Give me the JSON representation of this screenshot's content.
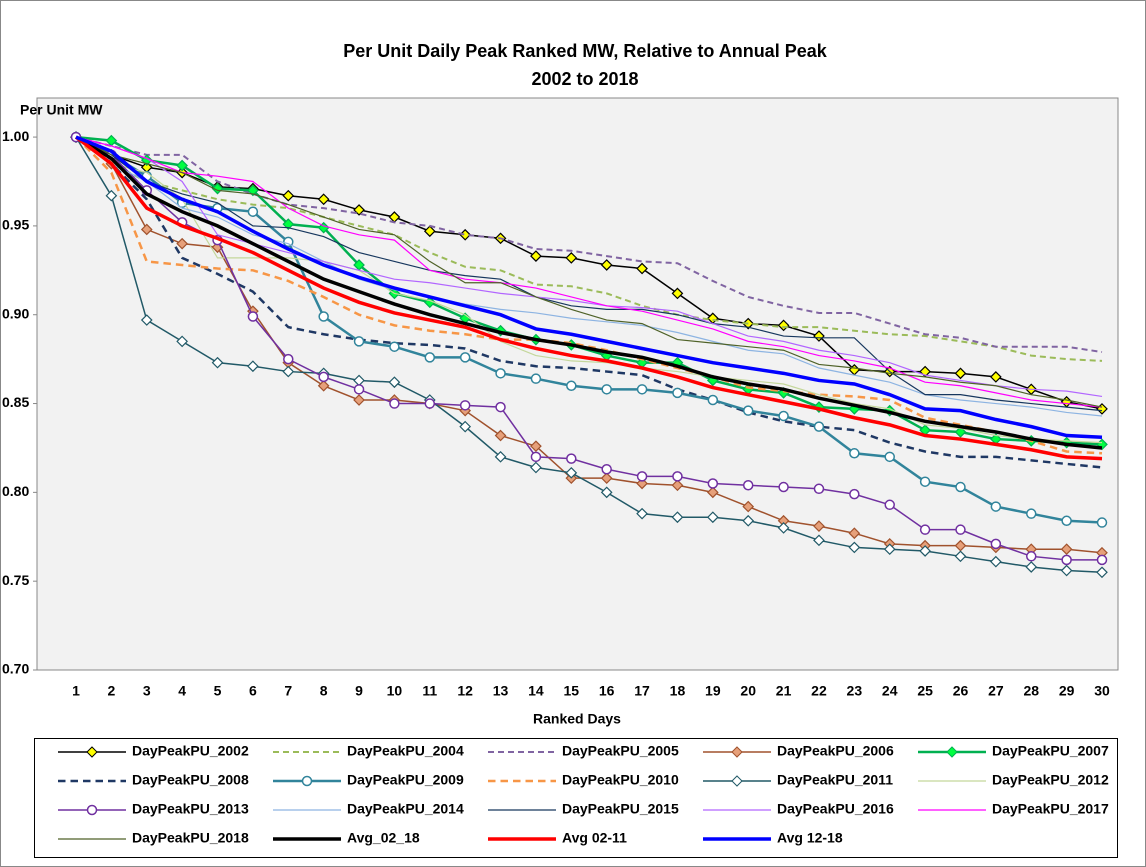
{
  "chart_data": {
    "type": "line",
    "title": "Per Unit Daily Peak Ranked MW, Relative to Annual Peak",
    "subtitle": "2002 to 2018",
    "y_label": "Per Unit MW",
    "x_label": "Ranked Days",
    "categories": [
      "1",
      "2",
      "3",
      "4",
      "5",
      "6",
      "7",
      "8",
      "9",
      "10",
      "11",
      "12",
      "13",
      "14",
      "15",
      "16",
      "17",
      "18",
      "19",
      "20",
      "21",
      "22",
      "23",
      "24",
      "25",
      "26",
      "27",
      "28",
      "29",
      "30"
    ],
    "ylim": [
      0.7,
      1.022
    ],
    "yticks": [
      {
        "value": 0.7,
        "label": "0.70"
      },
      0.75,
      {
        "value": 0.8,
        "label": "0.80"
      },
      0.85,
      {
        "value": 0.9,
        "label": "0.90"
      },
      0.95,
      {
        "value": 1,
        "label": "1.00"
      }
    ],
    "grid": false,
    "legend": "bottom",
    "series": [
      {
        "name": "DayPeakPU_2002",
        "color": "#000000",
        "width": 1.5,
        "marker": "diamond",
        "marker_fill": "#ffff00",
        "values": [
          1.0,
          0.99,
          0.983,
          0.98,
          0.972,
          0.971,
          0.967,
          0.965,
          0.959,
          0.955,
          0.947,
          0.945,
          0.943,
          0.933,
          0.932,
          0.928,
          0.926,
          0.912,
          0.898,
          0.895,
          0.894,
          0.888,
          0.869,
          0.868,
          0.868,
          0.867,
          0.865,
          0.858,
          0.851,
          0.847
        ]
      },
      {
        "name": "DayPeakPU_2004",
        "color": "#9bbb59",
        "width": 2,
        "dash": true,
        "values": [
          1.0,
          0.985,
          0.975,
          0.97,
          0.965,
          0.962,
          0.96,
          0.955,
          0.95,
          0.945,
          0.935,
          0.927,
          0.925,
          0.917,
          0.916,
          0.912,
          0.905,
          0.9,
          0.897,
          0.895,
          0.893,
          0.893,
          0.891,
          0.889,
          0.888,
          0.885,
          0.882,
          0.877,
          0.875,
          0.874
        ]
      },
      {
        "name": "DayPeakPU_2005",
        "color": "#8064a2",
        "width": 2,
        "dash": true,
        "values": [
          1.0,
          0.995,
          0.99,
          0.99,
          0.975,
          0.968,
          0.962,
          0.96,
          0.957,
          0.952,
          0.95,
          0.945,
          0.943,
          0.937,
          0.936,
          0.933,
          0.93,
          0.929,
          0.919,
          0.91,
          0.905,
          0.901,
          0.901,
          0.895,
          0.889,
          0.887,
          0.882,
          0.882,
          0.882,
          0.879
        ]
      },
      {
        "name": "DayPeakPU_2006",
        "color": "#a0522d",
        "width": 1.5,
        "marker": "diamond",
        "marker_fill": "#e6a07a",
        "values": [
          1.0,
          0.985,
          0.948,
          0.94,
          0.938,
          0.902,
          0.873,
          0.86,
          0.852,
          0.852,
          0.85,
          0.846,
          0.832,
          0.826,
          0.808,
          0.808,
          0.805,
          0.804,
          0.8,
          0.792,
          0.784,
          0.781,
          0.777,
          0.771,
          0.77,
          0.77,
          0.769,
          0.768,
          0.768,
          0.766
        ]
      },
      {
        "name": "DayPeakPU_2007",
        "color": "#00b050",
        "width": 2.5,
        "marker": "diamond",
        "marker_fill": "#00ff40",
        "values": [
          1.0,
          0.998,
          0.987,
          0.984,
          0.971,
          0.97,
          0.951,
          0.949,
          0.928,
          0.912,
          0.907,
          0.898,
          0.891,
          0.886,
          0.883,
          0.877,
          0.873,
          0.873,
          0.863,
          0.858,
          0.856,
          0.848,
          0.847,
          0.846,
          0.835,
          0.834,
          0.83,
          0.829,
          0.828,
          0.827
        ]
      },
      {
        "name": "DayPeakPU_2008",
        "color": "#1f3864",
        "width": 2.5,
        "dash": true,
        "values": [
          1.0,
          0.985,
          0.965,
          0.932,
          0.923,
          0.913,
          0.893,
          0.889,
          0.886,
          0.884,
          0.883,
          0.881,
          0.874,
          0.871,
          0.87,
          0.868,
          0.866,
          0.858,
          0.852,
          0.845,
          0.84,
          0.837,
          0.835,
          0.828,
          0.823,
          0.82,
          0.82,
          0.818,
          0.816,
          0.814
        ]
      },
      {
        "name": "DayPeakPU_2009",
        "color": "#31849b",
        "width": 2.5,
        "marker": "circle",
        "marker_fill": "#ffffff",
        "values": [
          1.0,
          0.99,
          0.978,
          0.963,
          0.96,
          0.958,
          0.941,
          0.899,
          0.885,
          0.882,
          0.876,
          0.876,
          0.867,
          0.864,
          0.86,
          0.858,
          0.858,
          0.856,
          0.852,
          0.846,
          0.843,
          0.837,
          0.822,
          0.82,
          0.806,
          0.803,
          0.792,
          0.788,
          0.784,
          0.783
        ]
      },
      {
        "name": "DayPeakPU_2010",
        "color": "#f79646",
        "width": 2.5,
        "dash": true,
        "values": [
          1.0,
          0.98,
          0.93,
          0.928,
          0.926,
          0.925,
          0.919,
          0.91,
          0.9,
          0.894,
          0.891,
          0.889,
          0.886,
          0.886,
          0.884,
          0.88,
          0.875,
          0.87,
          0.865,
          0.859,
          0.857,
          0.855,
          0.854,
          0.852,
          0.842,
          0.838,
          0.834,
          0.829,
          0.823,
          0.822
        ]
      },
      {
        "name": "DayPeakPU_2011",
        "color": "#215967",
        "width": 1.5,
        "marker": "diamond",
        "marker_fill": "#ffffff",
        "values": [
          1.0,
          0.967,
          0.897,
          0.885,
          0.873,
          0.871,
          0.868,
          0.867,
          0.863,
          0.862,
          0.852,
          0.837,
          0.82,
          0.814,
          0.811,
          0.8,
          0.788,
          0.786,
          0.786,
          0.784,
          0.78,
          0.773,
          0.769,
          0.768,
          0.767,
          0.764,
          0.761,
          0.758,
          0.756,
          0.755
        ]
      },
      {
        "name": "DayPeakPU_2012",
        "color": "#c4d79b",
        "width": 1.2,
        "values": [
          1.0,
          0.985,
          0.98,
          0.965,
          0.932,
          0.932,
          0.932,
          0.93,
          0.925,
          0.912,
          0.908,
          0.9,
          0.885,
          0.877,
          0.874,
          0.873,
          0.87,
          0.868,
          0.865,
          0.863,
          0.861,
          0.855,
          0.85,
          0.847,
          0.838,
          0.836,
          0.832,
          0.83,
          0.829,
          0.828
        ]
      },
      {
        "name": "DayPeakPU_2013",
        "color": "#7030a0",
        "width": 1.5,
        "marker": "circle",
        "marker_fill": "#ffffff",
        "values": [
          1.0,
          0.99,
          0.97,
          0.952,
          0.942,
          0.899,
          0.875,
          0.865,
          0.858,
          0.85,
          0.85,
          0.849,
          0.848,
          0.82,
          0.819,
          0.813,
          0.809,
          0.809,
          0.805,
          0.804,
          0.803,
          0.802,
          0.799,
          0.793,
          0.779,
          0.779,
          0.771,
          0.764,
          0.762,
          0.762
        ]
      },
      {
        "name": "DayPeakPU_2014",
        "color": "#8db4e2",
        "width": 1.2,
        "values": [
          1.0,
          0.985,
          0.975,
          0.96,
          0.955,
          0.945,
          0.94,
          0.93,
          0.92,
          0.914,
          0.91,
          0.906,
          0.903,
          0.901,
          0.898,
          0.896,
          0.894,
          0.89,
          0.885,
          0.88,
          0.878,
          0.87,
          0.866,
          0.862,
          0.855,
          0.852,
          0.85,
          0.848,
          0.845,
          0.843
        ]
      },
      {
        "name": "DayPeakPU_2015",
        "color": "#17375e",
        "width": 1.2,
        "values": [
          1.0,
          0.99,
          0.975,
          0.968,
          0.963,
          0.95,
          0.949,
          0.944,
          0.935,
          0.93,
          0.925,
          0.922,
          0.92,
          0.91,
          0.905,
          0.903,
          0.903,
          0.9,
          0.895,
          0.893,
          0.888,
          0.887,
          0.887,
          0.868,
          0.855,
          0.855,
          0.852,
          0.85,
          0.848,
          0.846
        ]
      },
      {
        "name": "DayPeakPU_2016",
        "color": "#b266ff",
        "width": 1.2,
        "values": [
          1.0,
          0.995,
          0.988,
          0.975,
          0.945,
          0.94,
          0.935,
          0.93,
          0.925,
          0.92,
          0.918,
          0.915,
          0.912,
          0.91,
          0.908,
          0.905,
          0.904,
          0.902,
          0.895,
          0.888,
          0.885,
          0.88,
          0.877,
          0.873,
          0.866,
          0.863,
          0.86,
          0.858,
          0.857,
          0.854
        ]
      },
      {
        "name": "DayPeakPU_2017",
        "color": "#ff00ff",
        "width": 1.2,
        "values": [
          1.0,
          0.995,
          0.988,
          0.98,
          0.978,
          0.975,
          0.96,
          0.95,
          0.945,
          0.942,
          0.925,
          0.92,
          0.918,
          0.915,
          0.91,
          0.905,
          0.902,
          0.897,
          0.892,
          0.885,
          0.882,
          0.877,
          0.874,
          0.87,
          0.862,
          0.86,
          0.856,
          0.852,
          0.85,
          0.848
        ]
      },
      {
        "name": "DayPeakPU_2018",
        "color": "#4f6228",
        "width": 1.2,
        "values": [
          1.0,
          0.99,
          0.985,
          0.98,
          0.97,
          0.968,
          0.962,
          0.955,
          0.948,
          0.945,
          0.93,
          0.918,
          0.918,
          0.91,
          0.903,
          0.897,
          0.895,
          0.886,
          0.884,
          0.882,
          0.88,
          0.872,
          0.87,
          0.867,
          0.865,
          0.862,
          0.86,
          0.855,
          0.852,
          0.848
        ]
      },
      {
        "name": "Avg_02_18",
        "color": "#000000",
        "width": 3.5,
        "values": [
          1.0,
          0.988,
          0.968,
          0.958,
          0.95,
          0.94,
          0.93,
          0.92,
          0.913,
          0.906,
          0.9,
          0.895,
          0.89,
          0.886,
          0.883,
          0.879,
          0.876,
          0.871,
          0.865,
          0.861,
          0.858,
          0.853,
          0.849,
          0.845,
          0.84,
          0.837,
          0.834,
          0.83,
          0.827,
          0.825
        ]
      },
      {
        "name": "Avg 02-11",
        "color": "#ff0000",
        "width": 3.5,
        "values": [
          1.0,
          0.985,
          0.96,
          0.95,
          0.943,
          0.935,
          0.925,
          0.915,
          0.907,
          0.901,
          0.897,
          0.893,
          0.886,
          0.881,
          0.877,
          0.874,
          0.87,
          0.865,
          0.859,
          0.855,
          0.851,
          0.847,
          0.842,
          0.838,
          0.832,
          0.83,
          0.827,
          0.824,
          0.82,
          0.819
        ]
      },
      {
        "name": "Avg 12-18",
        "color": "#0000ff",
        "width": 3.5,
        "values": [
          1.0,
          0.992,
          0.975,
          0.965,
          0.958,
          0.947,
          0.937,
          0.928,
          0.921,
          0.915,
          0.91,
          0.905,
          0.9,
          0.892,
          0.889,
          0.885,
          0.881,
          0.877,
          0.873,
          0.87,
          0.867,
          0.863,
          0.861,
          0.855,
          0.847,
          0.846,
          0.841,
          0.837,
          0.832,
          0.831
        ]
      }
    ]
  }
}
